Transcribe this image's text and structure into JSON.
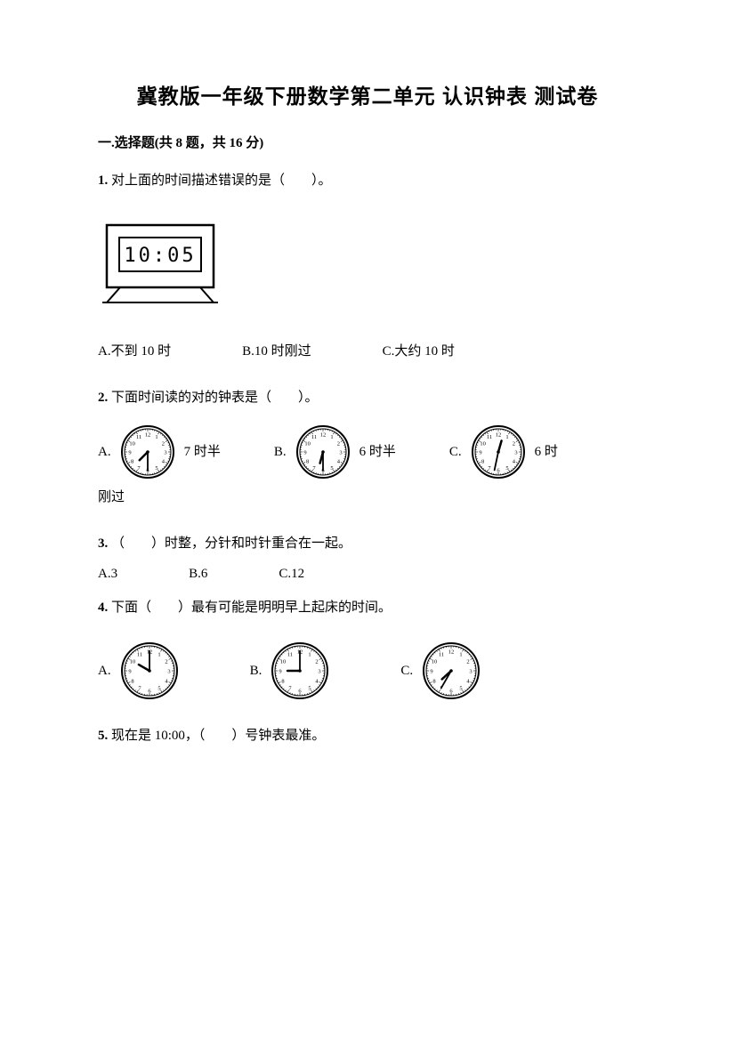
{
  "title": "冀教版一年级下册数学第二单元 认识钟表 测试卷",
  "section1": {
    "head": "一.选择题(共 8 题，共 16 分)"
  },
  "q1": {
    "num": "1.",
    "text": "对上面的时间描述错误的是（　　）。",
    "digital": "10:05",
    "optA": "A.不到 10 时",
    "optB": "B.10 时刚过",
    "optC": "C.大约 10 时"
  },
  "q2": {
    "num": "2.",
    "text": "下面时间读的对的钟表是（　　）。",
    "optA_prefix": "A.",
    "optA_label": "7 时半",
    "optB_prefix": "B.",
    "optB_label": "6 时半",
    "optC_prefix": "C.",
    "optC_label": "6 时",
    "trail": "刚过",
    "clockA": {
      "hour": 7,
      "minute": 30
    },
    "clockB": {
      "hour": 6,
      "minute": 30
    },
    "clockC": {
      "hour": 12,
      "minute": 32
    }
  },
  "q3": {
    "num": "3.",
    "text": "（　　）时整，分针和时针重合在一起。",
    "optA": "A.3",
    "optB": "B.6",
    "optC": "C.12"
  },
  "q4": {
    "num": "4.",
    "text": "下面（　　）最有可能是明明早上起床的时间。",
    "optA_prefix": "A.",
    "optB_prefix": "B.",
    "optC_prefix": "C.",
    "clockA": {
      "hour": 10,
      "minute": 0
    },
    "clockB": {
      "hour": 9,
      "minute": 0
    },
    "clockC": {
      "hour": 7,
      "minute": 35
    }
  },
  "q5": {
    "num": "5.",
    "text": "现在是 10:00，（　　）号钟表最准。"
  },
  "style": {
    "clock_radius": 30,
    "clock_stroke": "#000000",
    "clock_fill": "#ffffff",
    "digital_font": "monospace"
  }
}
